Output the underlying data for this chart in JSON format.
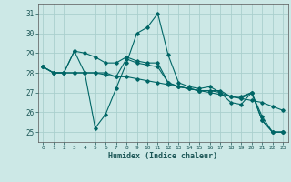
{
  "xlabel": "Humidex (Indice chaleur)",
  "x_ticks": [
    0,
    1,
    2,
    3,
    4,
    5,
    6,
    7,
    8,
    9,
    10,
    11,
    12,
    13,
    14,
    15,
    16,
    17,
    18,
    19,
    20,
    21,
    22,
    23
  ],
  "ylim": [
    24.5,
    31.5
  ],
  "xlim": [
    -0.5,
    23.5
  ],
  "yticks": [
    25,
    26,
    27,
    28,
    29,
    30,
    31
  ],
  "bg_color": "#cce8e6",
  "grid_color": "#aacfcd",
  "line_color": "#006666",
  "series": [
    [
      28.3,
      28.0,
      28.0,
      29.1,
      28.0,
      25.2,
      25.9,
      27.2,
      28.5,
      30.0,
      30.3,
      31.0,
      28.9,
      27.5,
      27.3,
      27.2,
      27.3,
      27.0,
      26.5,
      26.4,
      27.0,
      25.8,
      25.0,
      25.0
    ],
    [
      28.3,
      28.0,
      28.0,
      28.0,
      28.0,
      28.0,
      28.0,
      27.8,
      27.8,
      27.7,
      27.6,
      27.5,
      27.4,
      27.3,
      27.2,
      27.1,
      27.0,
      26.9,
      26.8,
      26.7,
      26.6,
      26.5,
      26.3,
      26.1
    ],
    [
      28.3,
      28.0,
      28.0,
      29.1,
      29.0,
      28.8,
      28.5,
      28.5,
      28.8,
      28.6,
      28.5,
      28.5,
      27.5,
      27.3,
      27.2,
      27.1,
      27.1,
      27.1,
      26.8,
      26.8,
      27.0,
      25.6,
      25.0,
      25.0
    ],
    [
      28.3,
      28.0,
      28.0,
      28.0,
      28.0,
      28.0,
      27.9,
      27.8,
      28.7,
      28.5,
      28.4,
      28.3,
      27.5,
      27.3,
      27.2,
      27.1,
      27.1,
      27.0,
      26.8,
      26.7,
      27.0,
      25.6,
      25.0,
      25.0
    ]
  ]
}
